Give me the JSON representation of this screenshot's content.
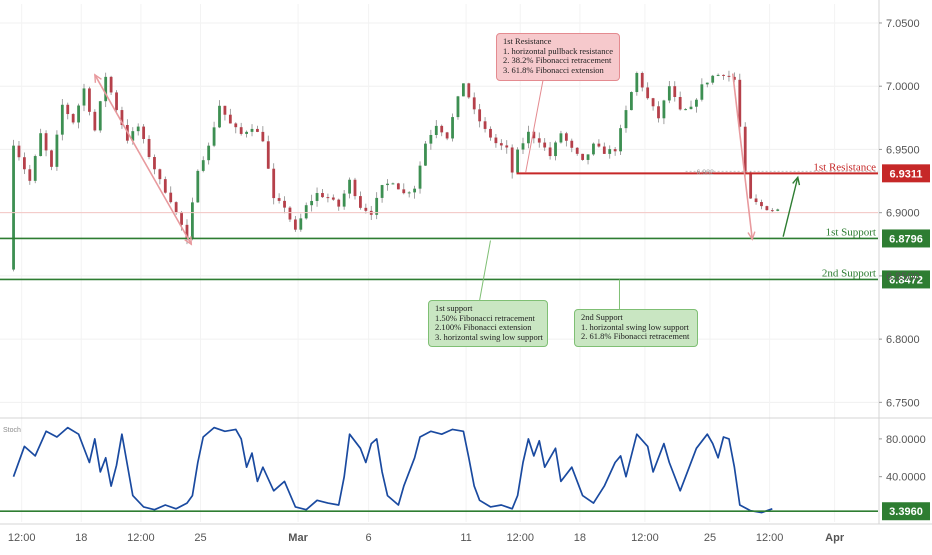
{
  "chart_data": {
    "type": "candlestick",
    "main_panel": {
      "y_axis": {
        "range": [
          6.74,
          7.065
        ],
        "ticks": [
          "7.0500",
          "7.0000",
          "6.9500",
          "6.9000",
          "6.8500",
          "6.8000",
          "6.7500"
        ]
      },
      "price_path": [
        [
          0,
          6.855
        ],
        [
          1,
          6.955
        ],
        [
          4,
          6.925
        ],
        [
          6,
          6.962
        ],
        [
          8,
          6.935
        ],
        [
          10,
          6.985
        ],
        [
          12,
          6.972
        ],
        [
          14,
          6.998
        ],
        [
          16,
          6.965
        ],
        [
          18,
          7.008
        ],
        [
          20,
          6.982
        ],
        [
          22,
          6.958
        ],
        [
          24,
          6.968
        ],
        [
          26,
          6.945
        ],
        [
          28,
          6.925
        ],
        [
          30,
          6.91
        ],
        [
          32,
          6.89
        ],
        [
          33,
          6.878
        ],
        [
          35,
          6.935
        ],
        [
          37,
          6.952
        ],
        [
          39,
          6.985
        ],
        [
          41,
          6.97
        ],
        [
          43,
          6.962
        ],
        [
          45,
          6.968
        ],
        [
          47,
          6.958
        ],
        [
          49,
          6.91
        ],
        [
          51,
          6.905
        ],
        [
          53,
          6.885
        ],
        [
          55,
          6.905
        ],
        [
          57,
          6.915
        ],
        [
          59,
          6.912
        ],
        [
          61,
          6.905
        ],
        [
          63,
          6.925
        ],
        [
          65,
          6.905
        ],
        [
          67,
          6.9
        ],
        [
          69,
          6.92
        ],
        [
          71,
          6.925
        ],
        [
          73,
          6.915
        ],
        [
          75,
          6.92
        ],
        [
          77,
          6.955
        ],
        [
          79,
          6.97
        ],
        [
          81,
          6.96
        ],
        [
          83,
          6.99
        ],
        [
          84,
          7.003
        ],
        [
          86,
          6.98
        ],
        [
          88,
          6.965
        ],
        [
          90,
          6.955
        ],
        [
          92,
          6.95
        ],
        [
          93,
          6.932
        ],
        [
          94,
          6.948
        ],
        [
          96,
          6.963
        ],
        [
          98,
          6.957
        ],
        [
          100,
          6.945
        ],
        [
          102,
          6.963
        ],
        [
          104,
          6.95
        ],
        [
          106,
          6.94
        ],
        [
          108,
          6.953
        ],
        [
          110,
          6.948
        ],
        [
          112,
          6.95
        ],
        [
          114,
          6.98
        ],
        [
          116,
          7.01
        ],
        [
          118,
          6.99
        ],
        [
          120,
          6.975
        ],
        [
          122,
          7.0
        ],
        [
          124,
          6.98
        ],
        [
          126,
          6.982
        ],
        [
          128,
          7.0
        ],
        [
          130,
          7.008
        ],
        [
          132,
          7.01
        ],
        [
          134,
          7.005
        ],
        [
          136,
          6.93
        ],
        [
          137,
          6.91
        ],
        [
          139,
          6.905
        ],
        [
          141,
          6.902
        ]
      ],
      "bar_count": 142,
      "last_price": 6.9,
      "levels": [
        {
          "name": "1st Resistance",
          "value": 6.9311,
          "value_label": "6.9311",
          "color": "#c62828"
        },
        {
          "name": "1st Support",
          "value": 6.8796,
          "value_label": "6.8796",
          "color": "#2e7d32"
        },
        {
          "name": "2nd Support",
          "value": 6.8472,
          "value_label": "6.8472",
          "color": "#2e7d32"
        }
      ],
      "retracement_label": "6.932"
    },
    "stoch_panel": {
      "label": "Stoch",
      "y_axis": {
        "range": [
          -8,
          100
        ],
        "ticks": [
          "80.0000",
          "40.0000"
        ]
      },
      "level": {
        "value": 3.396,
        "value_label": "3.3960"
      },
      "path": [
        [
          0,
          40
        ],
        [
          2,
          72
        ],
        [
          4,
          62
        ],
        [
          6,
          88
        ],
        [
          8,
          82
        ],
        [
          10,
          92
        ],
        [
          12,
          85
        ],
        [
          14,
          55
        ],
        [
          15,
          80
        ],
        [
          16,
          45
        ],
        [
          17,
          60
        ],
        [
          18,
          30
        ],
        [
          19,
          52
        ],
        [
          20,
          85
        ],
        [
          22,
          20
        ],
        [
          24,
          8
        ],
        [
          26,
          5
        ],
        [
          28,
          10
        ],
        [
          30,
          6
        ],
        [
          32,
          12
        ],
        [
          33,
          20
        ],
        [
          34,
          55
        ],
        [
          35,
          82
        ],
        [
          37,
          92
        ],
        [
          39,
          88
        ],
        [
          41,
          90
        ],
        [
          42,
          80
        ],
        [
          43,
          50
        ],
        [
          44,
          65
        ],
        [
          45,
          35
        ],
        [
          46,
          50
        ],
        [
          48,
          25
        ],
        [
          50,
          35
        ],
        [
          52,
          8
        ],
        [
          54,
          5
        ],
        [
          56,
          15
        ],
        [
          58,
          12
        ],
        [
          60,
          10
        ],
        [
          61,
          40
        ],
        [
          62,
          85
        ],
        [
          64,
          70
        ],
        [
          65,
          55
        ],
        [
          66,
          75
        ],
        [
          67,
          80
        ],
        [
          68,
          45
        ],
        [
          69,
          20
        ],
        [
          71,
          10
        ],
        [
          72,
          30
        ],
        [
          74,
          60
        ],
        [
          75,
          82
        ],
        [
          77,
          88
        ],
        [
          79,
          85
        ],
        [
          81,
          90
        ],
        [
          83,
          88
        ],
        [
          84,
          60
        ],
        [
          85,
          30
        ],
        [
          86,
          15
        ],
        [
          88,
          8
        ],
        [
          90,
          10
        ],
        [
          92,
          6
        ],
        [
          93,
          20
        ],
        [
          94,
          55
        ],
        [
          95,
          80
        ],
        [
          96,
          62
        ],
        [
          97,
          78
        ],
        [
          98,
          50
        ],
        [
          100,
          70
        ],
        [
          101,
          35
        ],
        [
          103,
          50
        ],
        [
          105,
          20
        ],
        [
          107,
          12
        ],
        [
          109,
          30
        ],
        [
          111,
          55
        ],
        [
          112,
          62
        ],
        [
          113,
          40
        ],
        [
          115,
          85
        ],
        [
          117,
          72
        ],
        [
          118,
          45
        ],
        [
          120,
          75
        ],
        [
          121,
          55
        ],
        [
          123,
          25
        ],
        [
          124,
          40
        ],
        [
          126,
          70
        ],
        [
          128,
          85
        ],
        [
          129,
          75
        ],
        [
          130,
          60
        ],
        [
          131,
          82
        ],
        [
          132,
          80
        ],
        [
          133,
          50
        ],
        [
          134,
          10
        ],
        [
          136,
          4
        ],
        [
          138,
          2
        ],
        [
          140,
          6
        ]
      ]
    },
    "x_axis": {
      "bar_range": [
        -2,
        160
      ],
      "ticks": [
        {
          "label": "12:00",
          "bar": 2
        },
        {
          "label": "18",
          "bar": 13
        },
        {
          "label": "12:00",
          "bar": 24
        },
        {
          "label": "25",
          "bar": 35
        },
        {
          "label": "Mar",
          "bar": 53
        },
        {
          "label": "6",
          "bar": 66
        },
        {
          "label": "11",
          "bar": 84
        },
        {
          "label": "12:00",
          "bar": 94
        },
        {
          "label": "18",
          "bar": 105
        },
        {
          "label": "12:00",
          "bar": 117
        },
        {
          "label": "25",
          "bar": 129
        },
        {
          "label": "12:00",
          "bar": 140
        },
        {
          "label": "Apr",
          "bar": 152
        }
      ]
    },
    "annotations": {
      "resistance": {
        "title": "1st Resistance",
        "lines": [
          "1. horizontal pullback resistance",
          "2. 38.2% Fibonacci retracement",
          "3. 61.8% Fibonacci extension"
        ]
      },
      "support1": {
        "title": "1st support",
        "lines": [
          "1.50% Fibonacci retracement",
          "2.100% Fibonacci extension",
          "3. horizontal swing low support"
        ]
      },
      "support2": {
        "title": "2nd Support",
        "lines": [
          "1. horizontal swing low support",
          "2. 61.8% Fibonacci retracement"
        ]
      }
    },
    "colors": {
      "up": "#3d8f52",
      "down": "#b5404a",
      "wick": "#8a8a8a",
      "resistance": "#c62828",
      "support": "#2e7d32",
      "stoch": "#1a4aa0",
      "arrow_pink": "#e89a9e",
      "current_price_line": "#f4c7c4"
    }
  }
}
